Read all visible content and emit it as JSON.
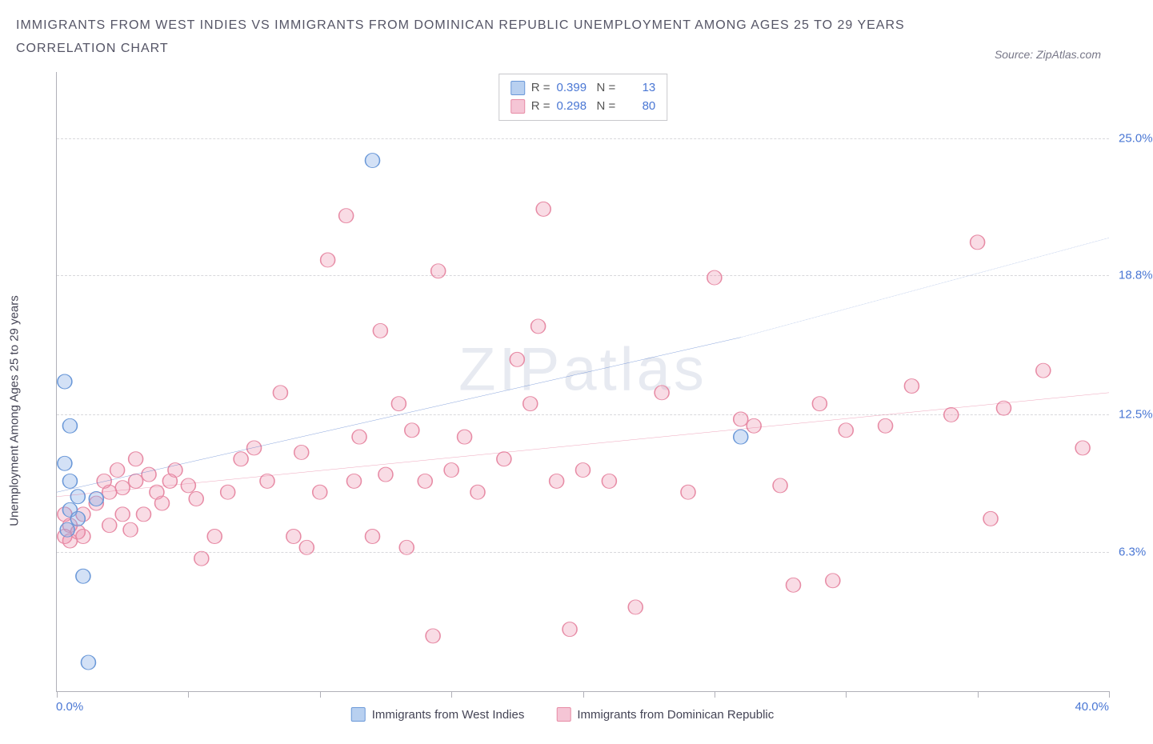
{
  "title_line1": "IMMIGRANTS FROM WEST INDIES VS IMMIGRANTS FROM DOMINICAN REPUBLIC UNEMPLOYMENT AMONG AGES 25 TO 29 YEARS",
  "title_line2": "CORRELATION CHART",
  "source_label": "Source: ZipAtlas.com",
  "watermark_text": "ZIPatlas",
  "y_axis": {
    "label": "Unemployment Among Ages 25 to 29 years",
    "min": 0,
    "max": 28,
    "ticks": [
      6.3,
      12.5,
      18.8,
      25.0
    ],
    "tick_labels": [
      "6.3%",
      "12.5%",
      "18.8%",
      "25.0%"
    ],
    "label_color": "#4a77d4",
    "grid_color": "#d8d8dc"
  },
  "x_axis": {
    "min": 0,
    "max": 40,
    "min_label": "0.0%",
    "max_label": "40.0%",
    "tick_positions": [
      0,
      5,
      10,
      15,
      20,
      25,
      30,
      35,
      40
    ],
    "label_color": "#4a77d4"
  },
  "series": [
    {
      "id": "west_indies",
      "name": "Immigrants from West Indies",
      "fill_color": "rgba(130,170,230,0.35)",
      "stroke_color": "#6a98d8",
      "line_color": "#2a5cc0",
      "swatch_fill": "#b8d0f0",
      "swatch_border": "#6a98d8",
      "R": "0.399",
      "N": "13",
      "marker_radius": 9,
      "trend": {
        "x1": 0,
        "y1": 9.0,
        "x2": 26,
        "y2": 16.0,
        "x2_dash": 40,
        "y2_dash": 20.5
      },
      "points": [
        {
          "x": 0.3,
          "y": 10.3
        },
        {
          "x": 0.3,
          "y": 14.0
        },
        {
          "x": 0.4,
          "y": 7.3
        },
        {
          "x": 0.5,
          "y": 9.5
        },
        {
          "x": 0.5,
          "y": 8.2
        },
        {
          "x": 0.5,
          "y": 12.0
        },
        {
          "x": 0.8,
          "y": 8.8
        },
        {
          "x": 0.8,
          "y": 7.8
        },
        {
          "x": 1.5,
          "y": 8.7
        },
        {
          "x": 1.0,
          "y": 5.2
        },
        {
          "x": 1.2,
          "y": 1.3
        },
        {
          "x": 12.0,
          "y": 24.0
        },
        {
          "x": 26.0,
          "y": 11.5
        }
      ]
    },
    {
      "id": "dominican",
      "name": "Immigrants from Dominican Republic",
      "fill_color": "rgba(235,130,160,0.28)",
      "stroke_color": "#e78ba5",
      "line_color": "#e05b85",
      "swatch_fill": "#f5c5d5",
      "swatch_border": "#e78ba5",
      "R": "0.298",
      "N": "80",
      "marker_radius": 9,
      "trend": {
        "x1": 0,
        "y1": 8.8,
        "x2": 40,
        "y2": 13.5
      },
      "points": [
        {
          "x": 0.3,
          "y": 8.0
        },
        {
          "x": 0.3,
          "y": 7.0
        },
        {
          "x": 0.5,
          "y": 6.8
        },
        {
          "x": 0.5,
          "y": 7.5
        },
        {
          "x": 0.8,
          "y": 7.2
        },
        {
          "x": 1.0,
          "y": 8.0
        },
        {
          "x": 1.0,
          "y": 7.0
        },
        {
          "x": 1.5,
          "y": 8.5
        },
        {
          "x": 1.8,
          "y": 9.5
        },
        {
          "x": 2.0,
          "y": 7.5
        },
        {
          "x": 2.0,
          "y": 9.0
        },
        {
          "x": 2.3,
          "y": 10.0
        },
        {
          "x": 2.5,
          "y": 8.0
        },
        {
          "x": 2.5,
          "y": 9.2
        },
        {
          "x": 2.8,
          "y": 7.3
        },
        {
          "x": 3.0,
          "y": 9.5
        },
        {
          "x": 3.0,
          "y": 10.5
        },
        {
          "x": 3.3,
          "y": 8.0
        },
        {
          "x": 3.5,
          "y": 9.8
        },
        {
          "x": 3.8,
          "y": 9.0
        },
        {
          "x": 4.0,
          "y": 8.5
        },
        {
          "x": 4.3,
          "y": 9.5
        },
        {
          "x": 4.5,
          "y": 10.0
        },
        {
          "x": 5.0,
          "y": 9.3
        },
        {
          "x": 5.3,
          "y": 8.7
        },
        {
          "x": 5.5,
          "y": 6.0
        },
        {
          "x": 6.0,
          "y": 7.0
        },
        {
          "x": 6.5,
          "y": 9.0
        },
        {
          "x": 7.0,
          "y": 10.5
        },
        {
          "x": 7.5,
          "y": 11.0
        },
        {
          "x": 8.0,
          "y": 9.5
        },
        {
          "x": 8.5,
          "y": 13.5
        },
        {
          "x": 9.0,
          "y": 7.0
        },
        {
          "x": 9.3,
          "y": 10.8
        },
        {
          "x": 9.5,
          "y": 6.5
        },
        {
          "x": 10.0,
          "y": 9.0
        },
        {
          "x": 10.3,
          "y": 19.5
        },
        {
          "x": 11.0,
          "y": 21.5
        },
        {
          "x": 11.3,
          "y": 9.5
        },
        {
          "x": 11.5,
          "y": 11.5
        },
        {
          "x": 12.0,
          "y": 7.0
        },
        {
          "x": 12.3,
          "y": 16.3
        },
        {
          "x": 12.5,
          "y": 9.8
        },
        {
          "x": 13.0,
          "y": 13.0
        },
        {
          "x": 13.3,
          "y": 6.5
        },
        {
          "x": 13.5,
          "y": 11.8
        },
        {
          "x": 14.0,
          "y": 9.5
        },
        {
          "x": 14.3,
          "y": 2.5
        },
        {
          "x": 14.5,
          "y": 19.0
        },
        {
          "x": 15.0,
          "y": 10.0
        },
        {
          "x": 15.5,
          "y": 11.5
        },
        {
          "x": 16.0,
          "y": 9.0
        },
        {
          "x": 17.0,
          "y": 10.5
        },
        {
          "x": 17.5,
          "y": 15.0
        },
        {
          "x": 18.0,
          "y": 13.0
        },
        {
          "x": 18.3,
          "y": 16.5
        },
        {
          "x": 18.5,
          "y": 21.8
        },
        {
          "x": 19.0,
          "y": 9.5
        },
        {
          "x": 19.5,
          "y": 2.8
        },
        {
          "x": 20.0,
          "y": 10.0
        },
        {
          "x": 21.0,
          "y": 9.5
        },
        {
          "x": 22.0,
          "y": 3.8
        },
        {
          "x": 23.0,
          "y": 13.5
        },
        {
          "x": 24.0,
          "y": 9.0
        },
        {
          "x": 25.0,
          "y": 18.7
        },
        {
          "x": 26.0,
          "y": 12.3
        },
        {
          "x": 26.5,
          "y": 12.0
        },
        {
          "x": 27.5,
          "y": 9.3
        },
        {
          "x": 28.0,
          "y": 4.8
        },
        {
          "x": 29.0,
          "y": 13.0
        },
        {
          "x": 29.5,
          "y": 5.0
        },
        {
          "x": 30.0,
          "y": 11.8
        },
        {
          "x": 31.5,
          "y": 12.0
        },
        {
          "x": 32.5,
          "y": 13.8
        },
        {
          "x": 34.0,
          "y": 12.5
        },
        {
          "x": 35.0,
          "y": 20.3
        },
        {
          "x": 35.5,
          "y": 7.8
        },
        {
          "x": 36.0,
          "y": 12.8
        },
        {
          "x": 37.5,
          "y": 14.5
        },
        {
          "x": 39.0,
          "y": 11.0
        }
      ]
    }
  ],
  "legend_stats": {
    "r_label": "R =",
    "n_label": "N ="
  },
  "background_color": "#ffffff",
  "axis_color": "#b0b0b8"
}
